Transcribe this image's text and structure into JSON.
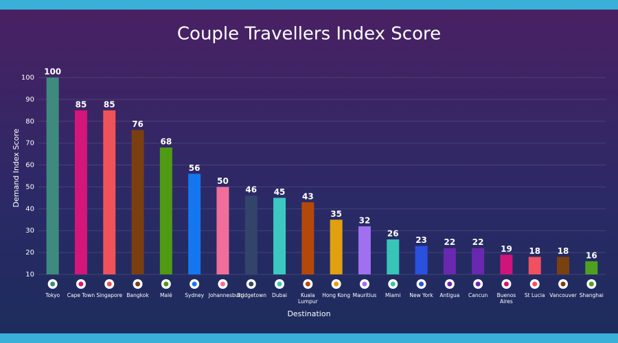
{
  "chart_data": {
    "type": "bar",
    "title": "Couple Travellers Index Score",
    "x_label": "Destination",
    "y_label": "Demand Index Score",
    "categories": [
      "Tokyo",
      "Cape Town",
      "Singapore",
      "Bangkok",
      "Malé",
      "Sydney",
      "Johannesburg",
      "Bridgetown",
      "Dubai",
      "Kuala Lumpur",
      "Hong Kong",
      "Mauritius",
      "Miami",
      "New York",
      "Antigua",
      "Cancun",
      "Buenos Aires",
      "St Lucia",
      "Vancouver",
      "Shanghai"
    ],
    "values": [
      100,
      85,
      85,
      76,
      68,
      56,
      50,
      46,
      45,
      43,
      35,
      32,
      26,
      23,
      22,
      22,
      19,
      18,
      18,
      16
    ],
    "colors": [
      "#3f8a7e",
      "#d4157a",
      "#f0525a",
      "#7a3e10",
      "#4f9a12",
      "#1477f0",
      "#f06e9a",
      "#33446a",
      "#3cc8c0",
      "#b4480a",
      "#e0a010",
      "#a070f0",
      "#38c4b8",
      "#2a50e0",
      "#6a28b0",
      "#6a28b0",
      "#d0157a",
      "#f05060",
      "#7a4010",
      "#50a020"
    ],
    "ylim": [
      10,
      100
    ],
    "yticks": [
      10,
      20,
      30,
      40,
      50,
      60,
      70,
      80,
      90,
      100
    ],
    "grid": true
  }
}
